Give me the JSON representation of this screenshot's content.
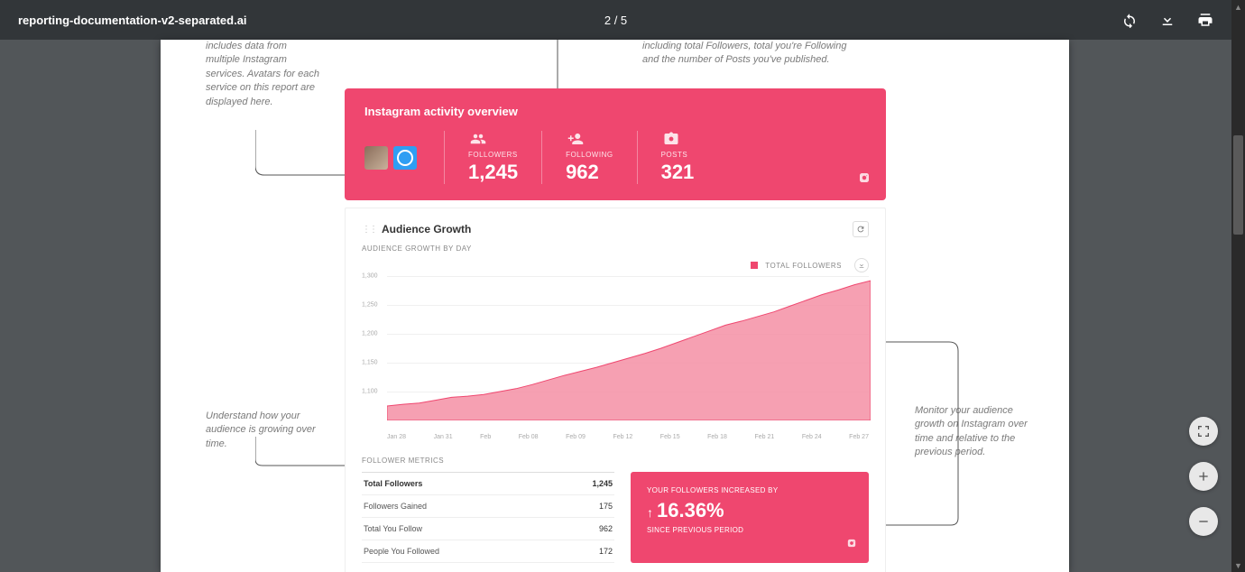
{
  "viewer": {
    "filename": "reporting-documentation-v2-separated.ai",
    "page_current": 2,
    "page_total": 5,
    "page_display": "2 / 5"
  },
  "annotations": {
    "top_left": "includes data from multiple Instagram services. Avatars for each service on this report are displayed here.",
    "top_right": "including total Followers, total you're Following and the number of Posts you've published.",
    "bottom_left": "Understand how your audience is growing over time.",
    "bottom_right": "Monitor your audience growth on Instagram over time and relative to the previous period."
  },
  "overview": {
    "title": "Instagram activity overview",
    "bg_color": "#ef476f",
    "stats": [
      {
        "label": "FOLLOWERS",
        "value": "1,245"
      },
      {
        "label": "FOLLOWING",
        "value": "962"
      },
      {
        "label": "POSTS",
        "value": "321"
      }
    ]
  },
  "growth": {
    "title": "Audience Growth",
    "subtitle": "AUDIENCE GROWTH BY DAY",
    "legend_label": "TOTAL FOLLOWERS",
    "legend_color": "#ef476f",
    "chart": {
      "type": "area",
      "line_color": "#ef476f",
      "fill_color": "#f48fa4",
      "fill_opacity": 0.85,
      "background_color": "#ffffff",
      "grid_color": "#f0f0f0",
      "ylim": [
        1050,
        1300
      ],
      "yticks": [
        1100,
        1150,
        1200,
        1250,
        1300
      ],
      "ylabels": [
        "1,100",
        "1,150",
        "1,200",
        "1,250",
        "1,300"
      ],
      "xlabels": [
        "Jan 28",
        "Jan 31",
        "Feb",
        "Feb 08",
        "Feb 09",
        "Feb 12",
        "Feb 15",
        "Feb 18",
        "Feb 21",
        "Feb 24",
        "Feb 27"
      ],
      "values": [
        1075,
        1078,
        1080,
        1085,
        1090,
        1092,
        1095,
        1100,
        1105,
        1112,
        1120,
        1128,
        1135,
        1142,
        1150,
        1158,
        1166,
        1175,
        1185,
        1195,
        1205,
        1215,
        1222,
        1230,
        1238,
        1248,
        1258,
        1268,
        1276,
        1285,
        1292
      ]
    },
    "metrics_header": "FOLLOWER METRICS",
    "metrics": [
      {
        "label": "Total Followers",
        "value": "1,245"
      },
      {
        "label": "Followers Gained",
        "value": "175"
      },
      {
        "label": "Total You Follow",
        "value": "962"
      },
      {
        "label": "People You Followed",
        "value": "172"
      }
    ],
    "increase": {
      "line1": "YOUR FOLLOWERS INCREASED BY",
      "percent": "16.36%",
      "line2": "SINCE PREVIOUS PERIOD",
      "bg_color": "#ef476f"
    }
  }
}
